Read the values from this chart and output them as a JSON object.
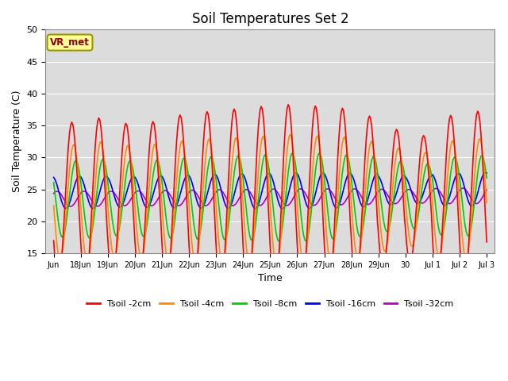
{
  "title": "Soil Temperatures Set 2",
  "xlabel": "Time",
  "ylabel": "Soil Temperature (C)",
  "ylim": [
    15,
    50
  ],
  "background_color": "#ffffff",
  "plot_bg_color": "#dcdcdc",
  "annotation_text": "VR_met",
  "annotation_box_color": "#ffff99",
  "annotation_border_color": "#999900",
  "series_colors": {
    "2cm": "#ff0000",
    "4cm": "#ff8c00",
    "8cm": "#00cc00",
    "16cm": "#0000ff",
    "32cm": "#bb00bb"
  },
  "legend_labels": [
    "Tsoil -2cm",
    "Tsoil -4cm",
    "Tsoil -8cm",
    "Tsoil -16cm",
    "Tsoil -32cm"
  ],
  "xtick_positions": [
    0,
    1,
    2,
    3,
    4,
    5,
    6,
    7,
    8,
    9,
    10,
    11,
    12,
    13,
    14,
    15,
    16
  ],
  "xtick_labels": [
    "Jun",
    "18Jun",
    "19Jun",
    "20Jun",
    "21Jun",
    "22Jun",
    "23Jun",
    "24Jun",
    "25Jun",
    "26Jun",
    "27Jun",
    "28Jun",
    "29Jun",
    "30",
    "Jul 1",
    "Jul 2",
    "Jul 3"
  ],
  "ytick_values": [
    15,
    20,
    25,
    30,
    35,
    40,
    45,
    50
  ],
  "grid_color": "#ffffff",
  "title_fontsize": 12,
  "axis_label_fontsize": 9,
  "tick_fontsize": 8,
  "linewidth": 1.2,
  "amp_2cm": 12.5,
  "amp_4cm": 9.0,
  "amp_8cm": 6.0,
  "amp_16cm": 2.5,
  "amp_32cm": 1.2,
  "base_2cm": 23.0,
  "base_4cm": 23.0,
  "base_8cm": 23.5,
  "base_16cm": 24.5,
  "base_32cm": 23.5,
  "phase_2cm": 0.0,
  "phase_4cm": 0.07,
  "phase_8cm": 0.15,
  "phase_16cm": 0.28,
  "phase_32cm": 0.45
}
